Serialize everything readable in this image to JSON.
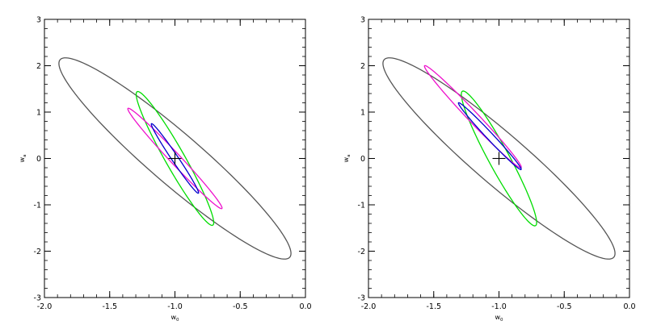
{
  "chart_data": [
    {
      "type": "contour",
      "title": "",
      "xlabel": "w",
      "xlabel_subscript": "0",
      "ylabel": "w",
      "ylabel_subscript": "a",
      "xlim": [
        -2.0,
        0.0
      ],
      "ylim": [
        -3,
        3
      ],
      "xticks": [
        "-2.0",
        "-1.5",
        "-1.0",
        "-0.5",
        "0.0"
      ],
      "yticks": [
        "-3",
        "-2",
        "-1",
        "0",
        "1",
        "2",
        "3"
      ],
      "grid": false,
      "legend": false,
      "fiducial": {
        "x": -1.0,
        "y": 0.0,
        "marker": "plus"
      },
      "series": [
        {
          "color": "#555555",
          "center": [
            -1.0,
            0.0
          ],
          "ends": [
            [
              -1.88,
              2.13
            ],
            [
              -0.12,
              -2.13
            ]
          ],
          "half_width": 0.3
        },
        {
          "color": "#00dd00",
          "center": [
            -1.0,
            0.0
          ],
          "ends": [
            [
              -1.29,
              1.44
            ],
            [
              -0.71,
              -1.44
            ]
          ],
          "half_width": 0.085
        },
        {
          "color": "#ee11cc",
          "center": [
            -1.0,
            0.0
          ],
          "ends": [
            [
              -1.36,
              1.08
            ],
            [
              -0.64,
              -1.08
            ]
          ],
          "half_width": 0.055
        },
        {
          "color": "#0000cc",
          "center": [
            -1.0,
            0.0
          ],
          "ends": [
            [
              -1.18,
              0.75
            ],
            [
              -0.82,
              -0.75
            ]
          ],
          "half_width": 0.03
        }
      ]
    },
    {
      "type": "contour",
      "title": "",
      "xlabel": "w",
      "xlabel_subscript": "0",
      "ylabel": "w",
      "ylabel_subscript": "a",
      "xlim": [
        -2.0,
        0.0
      ],
      "ylim": [
        -3,
        3
      ],
      "xticks": [
        "-2.0",
        "-1.5",
        "-1.0",
        "-0.5",
        "0.0"
      ],
      "yticks": [
        "-3",
        "-2",
        "-1",
        "0",
        "1",
        "2",
        "3"
      ],
      "grid": false,
      "legend": false,
      "fiducial": {
        "x": -1.0,
        "y": 0.0,
        "marker": "plus"
      },
      "series": [
        {
          "color": "#555555",
          "center": [
            -1.0,
            0.0
          ],
          "ends": [
            [
              -1.88,
              2.13
            ],
            [
              -0.12,
              -2.13
            ]
          ],
          "half_width": 0.3
        },
        {
          "color": "#00dd00",
          "center": [
            -1.0,
            -0.2
          ],
          "ends": [
            [
              -1.28,
              1.45
            ],
            [
              -0.72,
              -1.45
            ]
          ],
          "half_width": 0.09
        },
        {
          "color": "#ee11cc",
          "center": [
            -1.2,
            0.9
          ],
          "ends": [
            [
              -1.57,
              2.0
            ],
            [
              -0.83,
              -0.2
            ]
          ],
          "half_width": 0.055
        },
        {
          "color": "#0000cc",
          "center": [
            -1.07,
            0.48
          ],
          "ends": [
            [
              -1.31,
              1.2
            ],
            [
              -0.83,
              -0.24
            ]
          ],
          "half_width": 0.035
        }
      ]
    }
  ]
}
